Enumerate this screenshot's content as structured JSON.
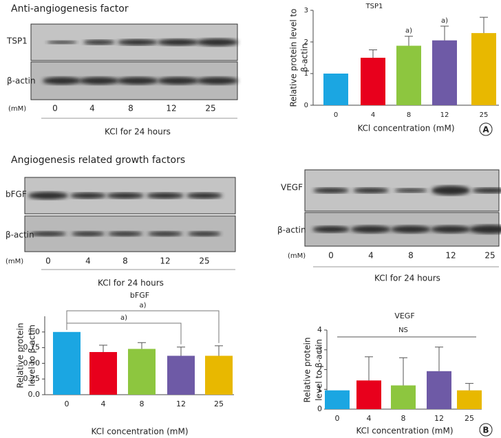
{
  "sections": [
    {
      "title": "Anti-angiogenesis factor"
    },
    {
      "title": "Angiogenesis related growth factors"
    }
  ],
  "blots": [
    {
      "bands": [
        "TSP1",
        "β-actin"
      ],
      "unit": "(mM)",
      "lanes": [
        "0",
        "4",
        "8",
        "12",
        "25"
      ],
      "caption": "KCl for 24 hours"
    },
    {
      "bands": [
        "bFGF",
        "β-actin"
      ],
      "unit": "(mM)",
      "lanes": [
        "0",
        "4",
        "8",
        "12",
        "25"
      ],
      "caption": "KCl for 24 hours"
    },
    {
      "bands": [
        "VEGF",
        "β-actin"
      ],
      "unit": "(mM)",
      "lanes": [
        "0",
        "4",
        "8",
        "12",
        "25"
      ],
      "caption": "KCl for 24 hours"
    }
  ],
  "panel_labels": [
    "A",
    "B"
  ],
  "chart_data": [
    {
      "type": "bar",
      "title": "TSP1",
      "y_label": [
        "Relative protein level to",
        "β-actin"
      ],
      "x_label": "KCl concentration (mM)",
      "categories": [
        "0",
        "4",
        "8",
        "12",
        "25"
      ],
      "values": [
        1,
        1.5,
        1.88,
        2.05,
        2.28
      ],
      "errors": [
        0,
        0.25,
        0.3,
        0.45,
        0.5
      ],
      "colors": [
        "#1ba6e2",
        "#e8001c",
        "#8dc63f",
        "#6e5aa6",
        "#e8b800"
      ],
      "ylim": [
        0,
        3
      ],
      "yticks": [
        0,
        1,
        2,
        3
      ],
      "annotations": [
        {
          "text": "a)",
          "categories": [
            "8"
          ]
        },
        {
          "text": "a)",
          "categories": [
            "12"
          ]
        }
      ]
    },
    {
      "type": "bar",
      "title": "bFGF",
      "y_label": [
        "Relative protein",
        "level to β-actin"
      ],
      "x_label": "KCl concentration (mM)",
      "categories": [
        "0",
        "4",
        "8",
        "12",
        "25"
      ],
      "values": [
        1.0,
        0.68,
        0.73,
        0.62,
        0.62
      ],
      "errors": [
        0,
        0.11,
        0.1,
        0.14,
        0.16
      ],
      "colors": [
        "#1ba6e2",
        "#e8001c",
        "#8dc63f",
        "#6e5aa6",
        "#e8b800"
      ],
      "ylim": [
        0,
        1.25
      ],
      "yticks": [
        {
          "value": 0,
          "label": "0.0"
        },
        {
          "value": 0.25,
          "label": "0.25"
        },
        {
          "value": 0.5,
          "label": "0.50"
        },
        {
          "value": 0.75,
          "label": "0.75"
        },
        {
          "value": 1,
          "label": "1.0"
        }
      ],
      "annotations": [
        {
          "text": "a)",
          "categories": [
            "0",
            "25"
          ]
        },
        {
          "text": "a)",
          "categories": [
            "0",
            "12"
          ]
        }
      ]
    },
    {
      "type": "bar",
      "title": "VEGF",
      "y_label": [
        "Relative protein",
        "level to β-actin"
      ],
      "x_label": "KCl concentration (mM)",
      "categories": [
        "0",
        "4",
        "8",
        "12",
        "25"
      ],
      "values": [
        0.95,
        1.45,
        1.2,
        1.92,
        0.95
      ],
      "errors": [
        0,
        1.2,
        1.4,
        1.22,
        0.35
      ],
      "colors": [
        "#1ba6e2",
        "#e8001c",
        "#8dc63f",
        "#6e5aa6",
        "#e8b800"
      ],
      "ylim": [
        0,
        4
      ],
      "yticks": [
        0,
        1,
        2,
        3,
        4
      ],
      "annotations": [
        {
          "text": "NS",
          "categories": [
            "0",
            "25"
          ],
          "style": "line"
        }
      ]
    }
  ]
}
